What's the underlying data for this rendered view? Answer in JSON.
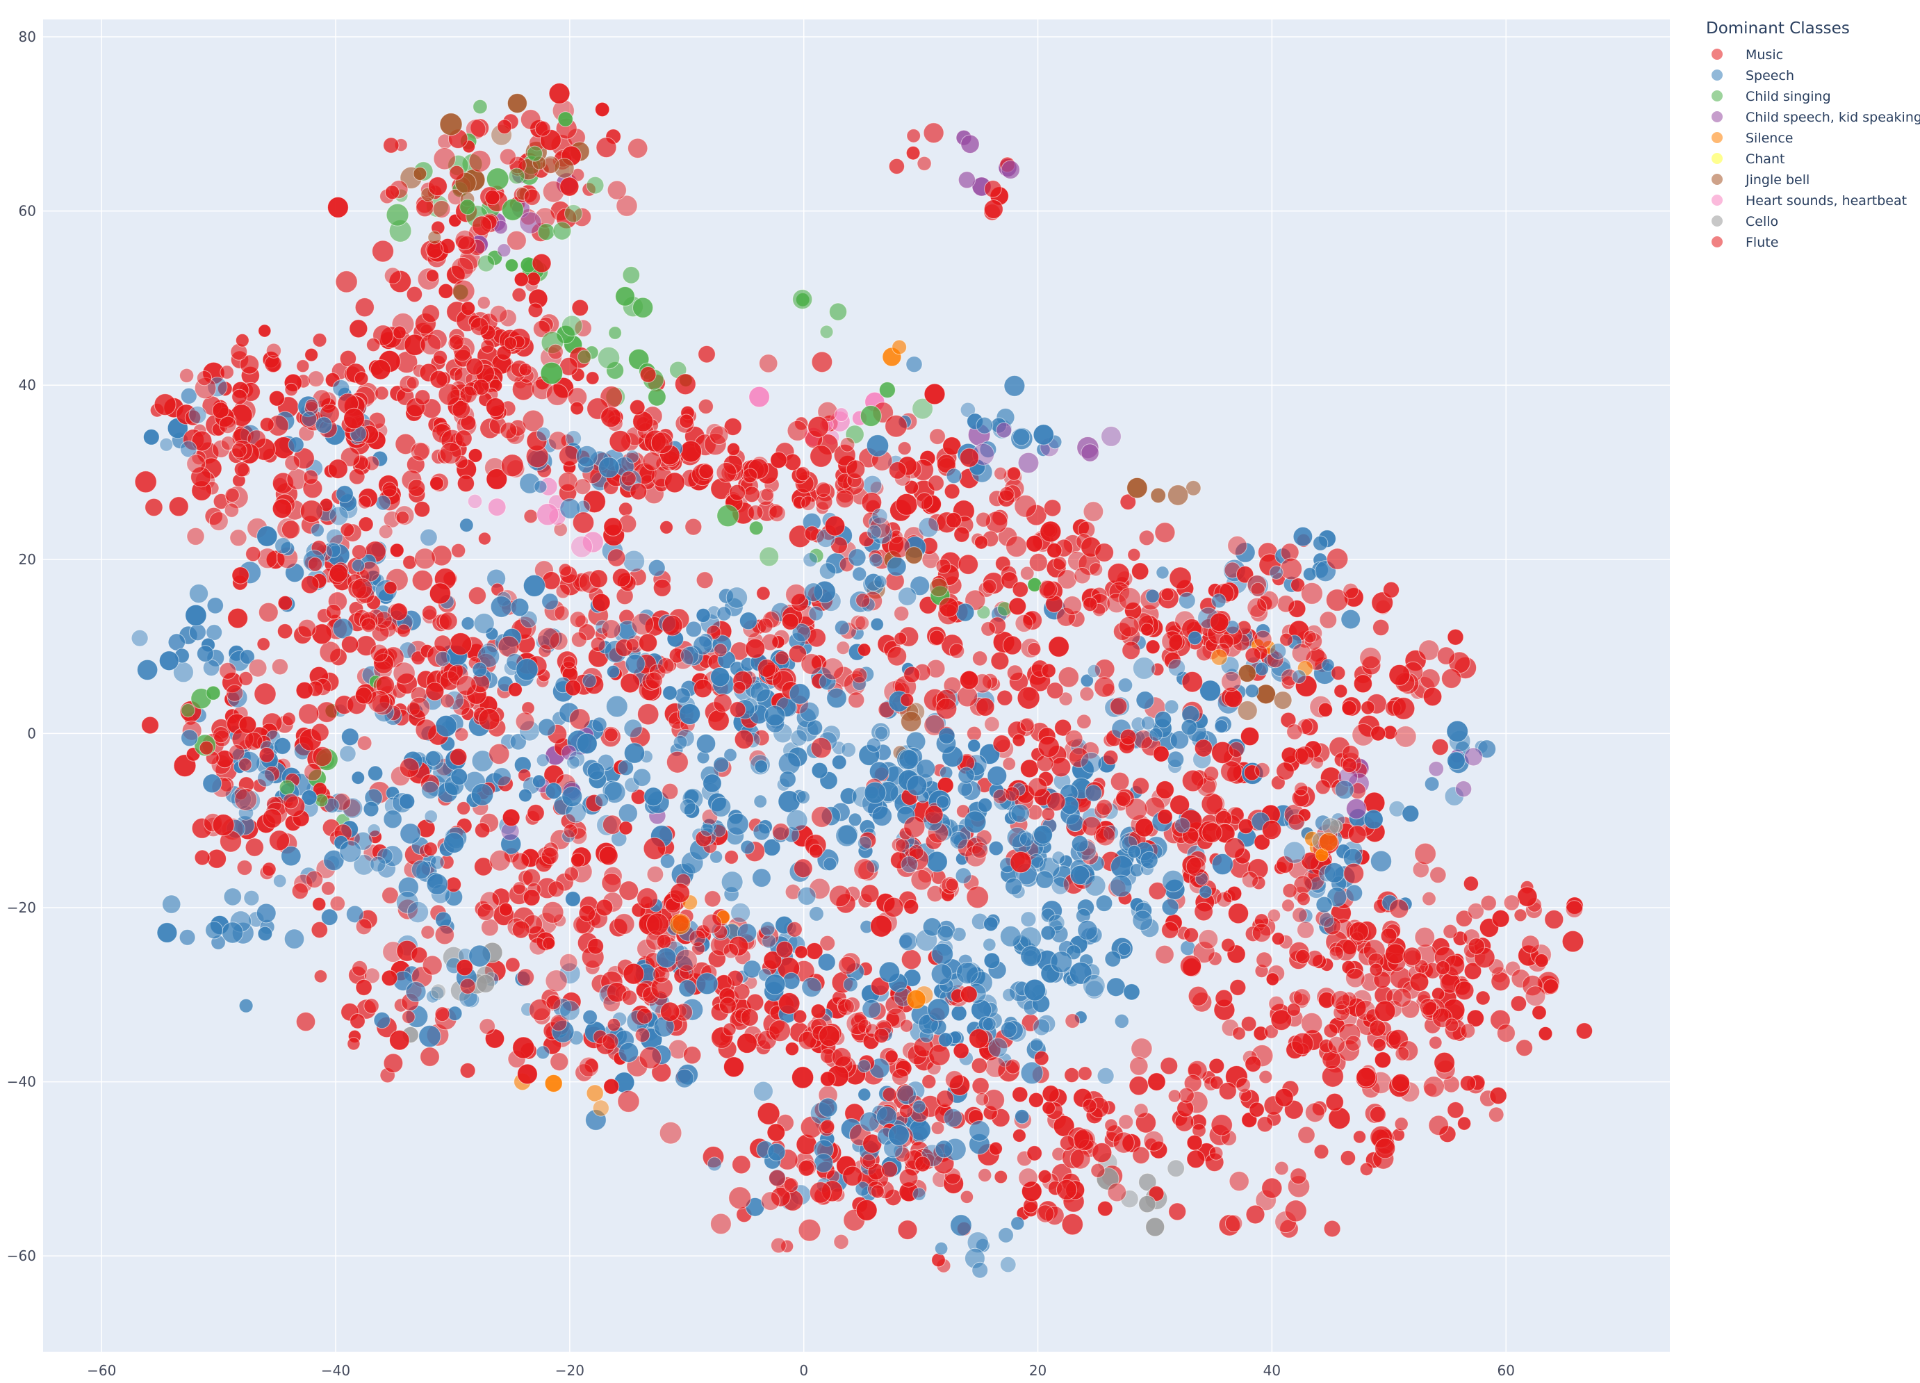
{
  "chart_data": {
    "type": "scatter",
    "title": "",
    "xlabel": "",
    "ylabel": "",
    "xlim": [
      -65,
      74
    ],
    "ylim": [
      -71,
      82
    ],
    "x_ticks": [
      -60,
      -40,
      -20,
      0,
      20,
      40,
      60
    ],
    "y_ticks": [
      -60,
      -40,
      -20,
      0,
      20,
      40,
      60,
      80
    ],
    "grid": true,
    "background_color": "#e5ecf6",
    "grid_color": "#ffffff",
    "legend": {
      "title": "Dominant Classes",
      "placement": "top-right outside"
    },
    "series": [
      {
        "name": "Music",
        "color": "#e41a1c"
      },
      {
        "name": "Speech",
        "color": "#377eb8"
      },
      {
        "name": "Child singing",
        "color": "#4daf4a"
      },
      {
        "name": "Child speech, kid speaking",
        "color": "#984ea3"
      },
      {
        "name": "Silence",
        "color": "#ff7f00"
      },
      {
        "name": "Chant",
        "color": "#ffff33"
      },
      {
        "name": "Jingle bell",
        "color": "#a65628"
      },
      {
        "name": "Heart sounds, heartbeat",
        "color": "#f781bf"
      },
      {
        "name": "Cello",
        "color": "#999999"
      },
      {
        "name": "Flute",
        "color": "#e41a1c"
      }
    ],
    "clusters": [
      {
        "series": "Music",
        "points": [
          [
            -45,
            38,
            6,
            4
          ],
          [
            -35,
            35,
            7,
            5
          ],
          [
            -30,
            45,
            5,
            5
          ],
          [
            -25,
            40,
            6,
            5
          ],
          [
            -28,
            60,
            4,
            6
          ],
          [
            -22,
            65,
            4,
            4
          ],
          [
            -15,
            30,
            6,
            4
          ],
          [
            -10,
            32,
            5,
            4
          ],
          [
            -3,
            28,
            4,
            3
          ],
          [
            5,
            30,
            4,
            4
          ],
          [
            12,
            25,
            5,
            4
          ],
          [
            20,
            20,
            5,
            4
          ],
          [
            28,
            15,
            5,
            4
          ],
          [
            35,
            10,
            4,
            4
          ],
          [
            -48,
            0,
            4,
            5
          ],
          [
            -45,
            -10,
            4,
            5
          ],
          [
            -30,
            5,
            6,
            5
          ],
          [
            -25,
            -15,
            6,
            6
          ],
          [
            -12,
            -20,
            6,
            6
          ],
          [
            -5,
            -30,
            6,
            5
          ],
          [
            5,
            -35,
            5,
            5
          ],
          [
            15,
            -40,
            5,
            5
          ],
          [
            25,
            -45,
            4,
            4
          ],
          [
            35,
            -45,
            4,
            4
          ],
          [
            45,
            -35,
            6,
            5
          ],
          [
            55,
            -30,
            5,
            5
          ],
          [
            60,
            -25,
            4,
            4
          ],
          [
            48,
            -25,
            5,
            5
          ],
          [
            38,
            -20,
            5,
            5
          ],
          [
            30,
            -10,
            5,
            5
          ],
          [
            22,
            -5,
            5,
            5
          ],
          [
            42,
            -5,
            5,
            5
          ],
          [
            10,
            -15,
            5,
            5
          ],
          [
            -10,
            5,
            5,
            5
          ],
          [
            2,
            10,
            5,
            5
          ],
          [
            15,
            8,
            5,
            5
          ],
          [
            -20,
            15,
            5,
            5
          ],
          [
            -40,
            20,
            5,
            5
          ],
          [
            -50,
            30,
            3,
            5
          ],
          [
            -38,
            10,
            5,
            5
          ],
          [
            0,
            -50,
            4,
            4
          ],
          [
            8,
            -50,
            4,
            4
          ],
          [
            20,
            -52,
            4,
            3
          ],
          [
            10,
            68,
            1,
            2
          ],
          [
            17,
            63,
            1,
            2
          ],
          [
            50,
            5,
            4,
            4
          ],
          [
            42,
            15,
            4,
            4
          ],
          [
            -18,
            -35,
            5,
            5
          ],
          [
            -35,
            -30,
            4,
            4
          ],
          [
            57,
            -43,
            2,
            2
          ],
          [
            40,
            -55,
            2,
            2
          ],
          [
            50,
            -45,
            3,
            3
          ]
        ]
      },
      {
        "series": "Speech",
        "points": [
          [
            -42,
            36,
            3,
            3
          ],
          [
            -38,
            20,
            4,
            4
          ],
          [
            -20,
            30,
            3,
            3
          ],
          [
            -18,
            -5,
            5,
            5
          ],
          [
            -10,
            10,
            5,
            5
          ],
          [
            -2,
            5,
            4,
            5
          ],
          [
            5,
            -5,
            5,
            5
          ],
          [
            12,
            -8,
            5,
            5
          ],
          [
            20,
            -12,
            5,
            5
          ],
          [
            28,
            -15,
            4,
            4
          ],
          [
            -45,
            -5,
            4,
            4
          ],
          [
            -32,
            -5,
            4,
            4
          ],
          [
            -30,
            -30,
            3,
            3
          ],
          [
            -46,
            -22,
            3,
            3
          ],
          [
            -15,
            -35,
            4,
            4
          ],
          [
            0,
            -48,
            3,
            3
          ],
          [
            8,
            -45,
            4,
            4
          ],
          [
            15,
            -58,
            2,
            2
          ],
          [
            18,
            -30,
            5,
            5
          ],
          [
            30,
            0,
            4,
            4
          ],
          [
            38,
            10,
            4,
            4
          ],
          [
            43,
            20,
            2,
            2
          ],
          [
            5,
            20,
            4,
            4
          ],
          [
            -28,
            10,
            4,
            4
          ],
          [
            -52,
            10,
            3,
            3
          ],
          [
            -55,
            35,
            2,
            2
          ],
          [
            15,
            35,
            3,
            3
          ],
          [
            10,
            -30,
            4,
            4
          ],
          [
            -5,
            -25,
            4,
            4
          ],
          [
            56,
            -3,
            2,
            2
          ],
          [
            45,
            -15,
            4,
            4
          ],
          [
            -35,
            -15,
            4,
            4
          ],
          [
            22,
            -25,
            4,
            4
          ],
          [
            -8,
            -10,
            4,
            4
          ]
        ]
      },
      {
        "series": "Child singing",
        "points": [
          [
            -25,
            62,
            4,
            6
          ],
          [
            -20,
            45,
            4,
            4
          ],
          [
            -12,
            45,
            3,
            3
          ],
          [
            -33,
            60,
            3,
            3
          ],
          [
            -40,
            -3,
            3,
            3
          ],
          [
            -52,
            2,
            2,
            2
          ],
          [
            2,
            48,
            2,
            2
          ],
          [
            17,
            15,
            2,
            2
          ],
          [
            -2,
            22,
            2,
            2
          ],
          [
            8,
            37,
            2,
            2
          ]
        ]
      },
      {
        "series": "Child speech, kid speaking",
        "points": [
          [
            -25,
            60,
            3,
            3
          ],
          [
            14,
            69,
            1,
            1
          ],
          [
            17,
            64,
            2,
            2
          ],
          [
            24,
            32,
            2,
            2
          ],
          [
            -20,
            -4,
            3,
            3
          ],
          [
            18,
            34,
            2,
            2
          ],
          [
            55,
            -3,
            2,
            2
          ],
          [
            48,
            -5,
            2,
            2
          ]
        ]
      },
      {
        "series": "Silence",
        "points": [
          [
            7,
            44,
            1,
            1
          ],
          [
            39,
            8,
            2,
            2
          ],
          [
            44,
            -13,
            2,
            2
          ],
          [
            -20,
            -42,
            2,
            2
          ],
          [
            10,
            -31,
            1,
            1
          ],
          [
            -9,
            -20,
            2,
            2
          ]
        ]
      },
      {
        "series": "Jingle bell",
        "points": [
          [
            -23,
            67,
            3,
            3
          ],
          [
            -30,
            63,
            3,
            3
          ],
          [
            41,
            4,
            2,
            2
          ],
          [
            29,
            27,
            2,
            2
          ],
          [
            12,
            17,
            2,
            2
          ],
          [
            8,
            1,
            2,
            2
          ]
        ]
      },
      {
        "series": "Heart sounds, heartbeat",
        "points": [
          [
            -22,
            25,
            3,
            3
          ],
          [
            5,
            38,
            3,
            3
          ]
        ]
      },
      {
        "series": "Cello",
        "points": [
          [
            -30,
            -28,
            3,
            3
          ],
          [
            28,
            -52,
            3,
            3
          ],
          [
            45,
            -12,
            2,
            2
          ]
        ]
      }
    ]
  }
}
